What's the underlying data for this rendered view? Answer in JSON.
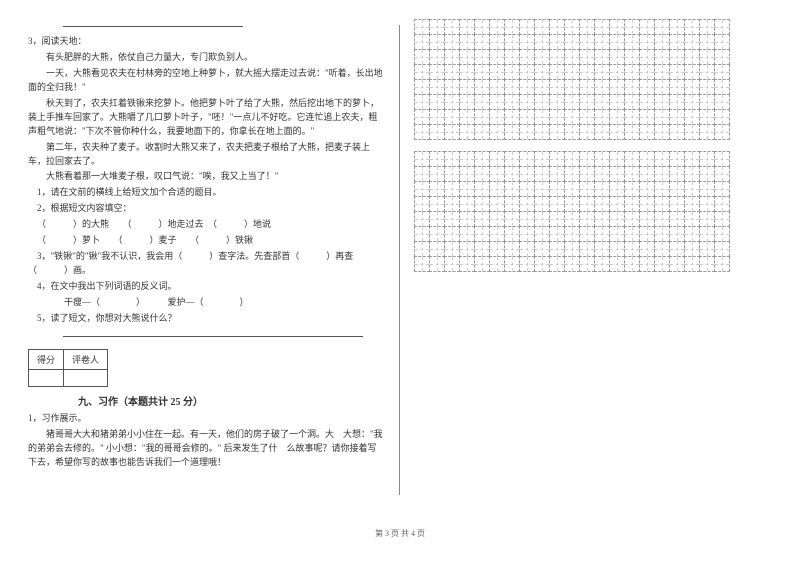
{
  "left": {
    "blank_line": "",
    "q3_label": "3，阅读天地：",
    "story": {
      "p1": "有头肥胖的大熊，依仗自己力量大，专门欺负别人。",
      "p2": "一天，大熊看见农夫在村林旁的空地上种萝卜，就大摇大摆走过去说：\"听着，长出地面的全归我！\"",
      "p3": "秋天到了，农夫扛着铁锹来挖萝卜。他把萝卜叶了给了大熊，然后挖出地下的萝卜，装上手推车回家了。大熊嚼了几口萝卜叶子，\"呸！\"一点儿不好吃。它连忙追上农夫，粗声粗气地说：\"下次不管你种什么，我要地面下的，你拿长在地上面的。\"",
      "p4": "第二年，农夫种了麦子。收割时大熊又来了，农夫把麦子根给了大熊，把麦子装上车，拉回家去了。",
      "p5": "大熊看着那一大堆麦子根，叹口气说：\"唉，我又上当了！\""
    },
    "sub": {
      "s1": "1，请在文前的横线上给短文加个合适的题目。",
      "s2": "2，根据短文内容填空：",
      "fill1": "（　　　）的大熊　　（　　　）地走过去　（　　　）地说",
      "fill2": "（　　　）萝卜　　（　　　）麦子　　（　　　）铁锹",
      "s3": "3，\"铁锹\"的\"锹\"我不认识，我会用（　　　）查字法。先查部首（　　　）再查（　　　）画。",
      "s4": "4，在文中我出下列词语的反义词。",
      "anti": "干瘦—（　　　　）　　　爱护—（　　　　）",
      "s5": "5，读了短文，你想对大熊说什么？"
    }
  },
  "score_table": {
    "c1": "得分",
    "c2": "评卷人"
  },
  "section9": {
    "title": "九、习作（本题共计 25 分）",
    "q1_label": "1，习作展示。",
    "prompt": "猪哥哥大大和猪弟弟小小住在一起。有一天，他们的房子破了一个洞。大　大想：\"我的弟弟会去修的。\" 小小想：\"我的哥哥会修的。\" 后来发生了什　么故事呢？请你接着写下去，希望你写的故事也能告诉我们一个道理哦！"
  },
  "grid": {
    "rows": 8,
    "cols": 21,
    "boxes": 2
  },
  "footer": "第 3 页 共 4 页"
}
